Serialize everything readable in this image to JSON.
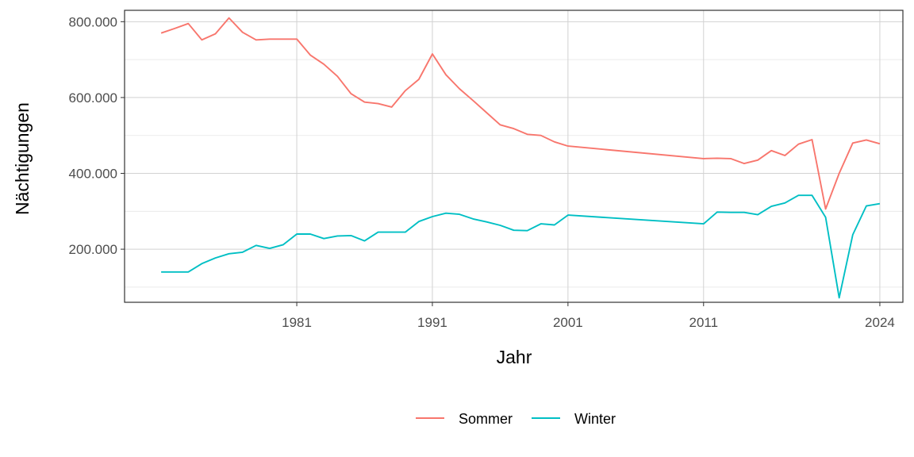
{
  "chart_data": {
    "type": "line",
    "xlabel": "Jahr",
    "ylabel": "Nächtigungen",
    "xlim": [
      1968.3,
      2025.7
    ],
    "ylim": [
      60000,
      830000
    ],
    "x_ticks": [
      1981,
      1991,
      2001,
      2011,
      2024
    ],
    "x_tick_labels": [
      "1981",
      "1991",
      "2001",
      "2011",
      "2024"
    ],
    "y_ticks": [
      200000,
      400000,
      600000,
      800000
    ],
    "y_tick_labels": [
      "200.000",
      "400.000",
      "600.000",
      "800.000"
    ],
    "grid": true,
    "legend_position": "bottom",
    "x": [
      1971,
      1972,
      1973,
      1974,
      1975,
      1976,
      1977,
      1978,
      1979,
      1980,
      1981,
      1982,
      1983,
      1984,
      1985,
      1986,
      1987,
      1988,
      1989,
      1990,
      1991,
      1992,
      1993,
      1994,
      1995,
      1996,
      1997,
      1998,
      1999,
      2000,
      2001,
      2011,
      2012,
      2013,
      2014,
      2015,
      2016,
      2017,
      2018,
      2019,
      2020,
      2021,
      2022,
      2023,
      2024
    ],
    "series": [
      {
        "name": "Sommer",
        "color": "#F8766D",
        "values": [
          770000,
          782000,
          795000,
          752000,
          768000,
          810000,
          772000,
          752000,
          754000,
          754000,
          754000,
          712000,
          688000,
          656000,
          610000,
          588000,
          584000,
          575000,
          618000,
          648000,
          715000,
          660000,
          623000,
          592000,
          560000,
          528000,
          518000,
          503000,
          500000,
          483000,
          472000,
          439000,
          440000,
          439000,
          426000,
          435000,
          460000,
          447000,
          477000,
          489000,
          306000,
          400000,
          480000,
          488000,
          478000
        ]
      },
      {
        "name": "Winter",
        "color": "#00BFC4",
        "values": [
          140000,
          140000,
          140000,
          162000,
          177000,
          188000,
          192000,
          210000,
          202000,
          212000,
          240000,
          240000,
          228000,
          235000,
          236000,
          222000,
          245000,
          245000,
          245000,
          273000,
          286000,
          295000,
          292000,
          280000,
          272000,
          263000,
          250000,
          249000,
          267000,
          264000,
          290000,
          267000,
          298000,
          297000,
          297000,
          291000,
          313000,
          322000,
          342000,
          342000,
          284000,
          72000,
          238000,
          314000,
          320000
        ]
      }
    ]
  }
}
